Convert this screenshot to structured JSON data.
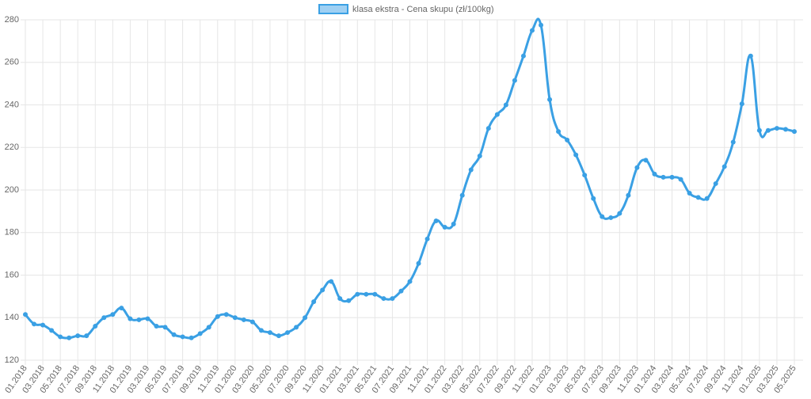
{
  "chart_data": {
    "type": "line",
    "series": [
      {
        "name": "klasa ekstra - Cena skupu (zł/100kg)",
        "color": "#3aa0e4",
        "values": [
          141.5,
          137,
          136.5,
          134,
          131,
          130.5,
          131.5,
          131.5,
          136,
          140,
          141.5,
          144.5,
          139.5,
          139,
          139.5,
          136,
          135.5,
          132,
          131,
          130.5,
          132.5,
          135.5,
          140.5,
          141.5,
          140,
          139,
          138,
          134,
          133,
          131.5,
          133,
          135.5,
          140,
          147.5,
          153,
          157,
          149,
          148,
          151,
          151,
          151,
          149,
          149,
          152.5,
          157,
          165.5,
          177,
          185.5,
          182.5,
          184,
          197.5,
          209.5,
          216,
          229,
          235.5,
          240,
          251.5,
          263,
          275,
          277.5,
          242.5,
          227.5,
          223.5,
          216.5,
          207,
          196,
          187.5,
          187,
          189,
          197.5,
          210.5,
          214,
          207.5,
          206,
          206,
          205,
          198.5,
          196.5,
          196,
          203,
          211,
          222.5,
          240.5,
          263,
          228,
          228,
          229,
          228.5,
          227.5
        ]
      }
    ],
    "categories": [
      "01.2018",
      null,
      "03.2018",
      null,
      "05.2018",
      null,
      "07.2018",
      null,
      "09.2018",
      null,
      "11.2018",
      null,
      "01.2019",
      null,
      "03.2019",
      null,
      "05.2019",
      null,
      "07.2019",
      null,
      "09.2019",
      null,
      "11.2019",
      null,
      "01.2020",
      null,
      "03.2020",
      null,
      "05.2020",
      null,
      "07.2020",
      null,
      "09.2020",
      null,
      "11.2020",
      null,
      "01.2021",
      null,
      "03.2021",
      null,
      "05.2021",
      null,
      "07.2021",
      null,
      "09.2021",
      null,
      "11.2021",
      null,
      "01.2022",
      null,
      "03.2022",
      null,
      "05.2022",
      null,
      "07.2022",
      null,
      "09.2022",
      null,
      "11.2022",
      null,
      "01.2023",
      null,
      "03.2023",
      null,
      "05.2023",
      null,
      "07.2023",
      null,
      "09.2023",
      null,
      "11.2023",
      null,
      "01.2024",
      null,
      "03.2024",
      null,
      "05.2024",
      null,
      "07.2024",
      null,
      "09.2024",
      null,
      "11.2024",
      null,
      "01.2025",
      null,
      "03.2025",
      null,
      "05.2025"
    ],
    "ylim": [
      120,
      280
    ],
    "yticks": [
      120,
      140,
      160,
      180,
      200,
      220,
      240,
      260,
      280
    ],
    "grid": true,
    "legend": "top"
  }
}
